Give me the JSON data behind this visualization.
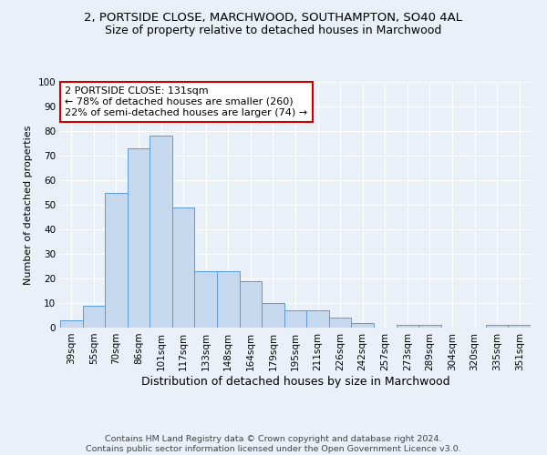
{
  "title1": "2, PORTSIDE CLOSE, MARCHWOOD, SOUTHAMPTON, SO40 4AL",
  "title2": "Size of property relative to detached houses in Marchwood",
  "xlabel": "Distribution of detached houses by size in Marchwood",
  "ylabel": "Number of detached properties",
  "categories": [
    "39sqm",
    "55sqm",
    "70sqm",
    "86sqm",
    "101sqm",
    "117sqm",
    "133sqm",
    "148sqm",
    "164sqm",
    "179sqm",
    "195sqm",
    "211sqm",
    "226sqm",
    "242sqm",
    "257sqm",
    "273sqm",
    "289sqm",
    "304sqm",
    "320sqm",
    "335sqm",
    "351sqm"
  ],
  "values": [
    3,
    9,
    55,
    73,
    78,
    49,
    23,
    23,
    19,
    10,
    7,
    7,
    4,
    2,
    0,
    1,
    1,
    0,
    0,
    1,
    1
  ],
  "bar_color": "#c5d8ed",
  "bar_edge_color": "#5b9bd5",
  "annotation_text": "2 PORTSIDE CLOSE: 131sqm\n← 78% of detached houses are smaller (260)\n22% of semi-detached houses are larger (74) →",
  "annotation_box_color": "#ffffff",
  "annotation_box_edge_color": "#cc0000",
  "ylim": [
    0,
    100
  ],
  "yticks": [
    0,
    10,
    20,
    30,
    40,
    50,
    60,
    70,
    80,
    90,
    100
  ],
  "footer1": "Contains HM Land Registry data © Crown copyright and database right 2024.",
  "footer2": "Contains public sector information licensed under the Open Government Licence v3.0.",
  "bg_color": "#eaf0f8",
  "plot_bg_color": "#eaf0f8",
  "grid_color": "#ffffff",
  "title1_fontsize": 9.5,
  "title2_fontsize": 9,
  "xlabel_fontsize": 9,
  "ylabel_fontsize": 8,
  "tick_fontsize": 7.5,
  "annotation_fontsize": 8,
  "footer_fontsize": 6.8
}
